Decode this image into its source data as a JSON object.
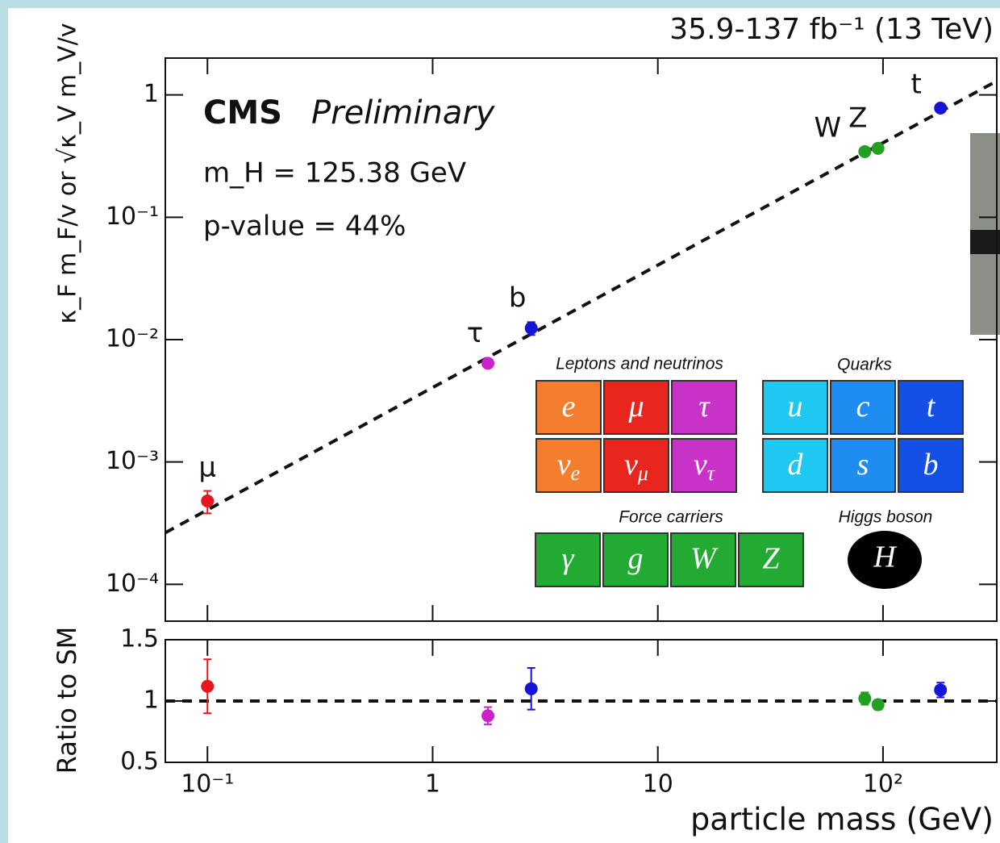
{
  "chart_data": [
    {
      "type": "scatter",
      "header": "35.9-137 fb⁻¹ (13 TeV)",
      "experiment": "CMS",
      "status": "Preliminary",
      "notes": [
        "m_H = 125.38 GeV",
        "p-value = 44%"
      ],
      "ylabel": "κ_F m_F/v or √κ_V m_V/v",
      "log_x": true,
      "log_y": true,
      "xlim": [
        0.065,
        320
      ],
      "xticks": [
        0.1,
        1,
        10,
        100
      ],
      "ylim": [
        5e-05,
        2
      ],
      "yticks": [
        {
          "value": 1,
          "label": "1"
        },
        {
          "value": 0.1,
          "label": "10⁻¹"
        },
        {
          "value": 0.01,
          "label": "10⁻²"
        },
        {
          "value": 0.001,
          "label": "10⁻³"
        },
        {
          "value": 0.0001,
          "label": "10⁻⁴"
        }
      ],
      "labels": [
        "μ",
        "τ",
        "b",
        "W",
        "Z",
        "t"
      ],
      "colors": [
        "#e8161e",
        "#cc22cc",
        "#1515d8",
        "#22a022",
        "#22a022",
        "#1515d8"
      ],
      "x": [
        0.1,
        1.76,
        2.74,
        83,
        95,
        180
      ],
      "values": [
        0.00048,
        0.0064,
        0.0124,
        0.344,
        0.366,
        0.78
      ],
      "errors": [
        0.0001,
        0.0005,
        0.0015,
        0.012,
        0.012,
        0.05
      ],
      "reference": {
        "x": [
          0.065,
          320
        ],
        "values": [
          0.000264,
          1.3
        ]
      }
    },
    {
      "type": "scatter",
      "log_x": true,
      "ylabel": "Ratio to SM",
      "xlabel": "particle mass (GeV)",
      "xlim": [
        0.065,
        320
      ],
      "xticks": [
        {
          "value": 0.1,
          "label": "10⁻¹"
        },
        1,
        10,
        {
          "value": 100,
          "label": "10²"
        }
      ],
      "ylim": [
        0.5,
        1.5
      ],
      "yticks": [
        0.5,
        1,
        1.5
      ],
      "colors": [
        "#e8161e",
        "#cc22cc",
        "#1515d8",
        "#22a022",
        "#22a022",
        "#1515d8"
      ],
      "x": [
        0.1,
        1.76,
        2.74,
        83,
        95,
        180
      ],
      "values": [
        1.12,
        0.88,
        1.1,
        1.02,
        0.97,
        1.09
      ],
      "errors": [
        0.22,
        0.07,
        0.17,
        0.05,
        0.04,
        0.06
      ],
      "reference": {
        "x": [
          0.065,
          320
        ],
        "values": [
          1,
          1
        ]
      }
    }
  ],
  "inset": {
    "groups": [
      {
        "title": "Leptons and neutrinos",
        "tiles": [
          {
            "symbol": "e"
          },
          {
            "symbol": "μ"
          },
          {
            "symbol": "τ"
          },
          {
            "symbol": "ν",
            "sub": "e"
          },
          {
            "symbol": "ν",
            "sub": "μ"
          },
          {
            "symbol": "ν",
            "sub": "τ"
          }
        ]
      },
      {
        "title": "Quarks",
        "tiles": [
          {
            "symbol": "u"
          },
          {
            "symbol": "c"
          },
          {
            "symbol": "t"
          },
          {
            "symbol": "d"
          },
          {
            "symbol": "s"
          },
          {
            "symbol": "b"
          }
        ]
      },
      {
        "title": "Force carriers",
        "tiles": [
          {
            "symbol": "γ"
          },
          {
            "symbol": "g"
          },
          {
            "symbol": "W"
          },
          {
            "symbol": "Z"
          }
        ]
      },
      {
        "title": "Higgs boson",
        "tiles": [
          {
            "symbol": "H"
          }
        ]
      }
    ]
  }
}
